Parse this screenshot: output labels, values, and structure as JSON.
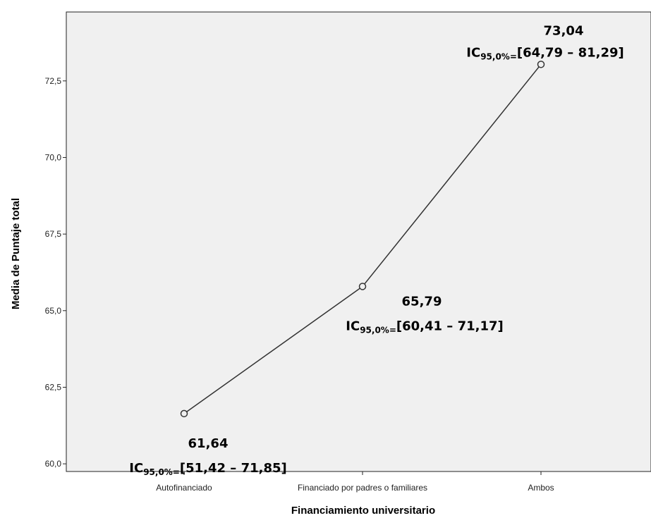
{
  "chart_data": {
    "type": "line",
    "xlabel": "Financiamiento universitario",
    "ylabel": "Media de Puntaje total",
    "categories": [
      "Autofinanciado",
      "Financiado por padres o familiares",
      "Ambos"
    ],
    "values": [
      61.64,
      65.79,
      73.04
    ],
    "ylim": [
      59.75,
      74.75
    ],
    "yticks": [
      {
        "value": 60.0,
        "label": "60,0"
      },
      {
        "value": 62.5,
        "label": "62,5"
      },
      {
        "value": 65.0,
        "label": "65,0"
      },
      {
        "value": 67.5,
        "label": "67,5"
      },
      {
        "value": 70.0,
        "label": "70,0"
      },
      {
        "value": 72.5,
        "label": "72,5"
      }
    ],
    "grid": false,
    "marker": "open-circle",
    "annotations": [
      {
        "value_label": "61,64",
        "ci_prefix": "IC",
        "ci_sub": "95,0%=",
        "ci_text": "[51,42 – 71,85]",
        "position": "below-left"
      },
      {
        "value_label": "65,79",
        "ci_prefix": "IC",
        "ci_sub": "95,0%=",
        "ci_text": "[60,41 – 71,17]",
        "position": "below-right"
      },
      {
        "value_label": "73,04",
        "ci_prefix": "IC",
        "ci_sub": "95,0%=",
        "ci_text": "[64,79 – 81,29]",
        "position": "above"
      }
    ],
    "colors": {
      "plot_background": "#f0f0f0",
      "line": "#333333",
      "axis": "#222222",
      "frame": "#222222"
    }
  }
}
